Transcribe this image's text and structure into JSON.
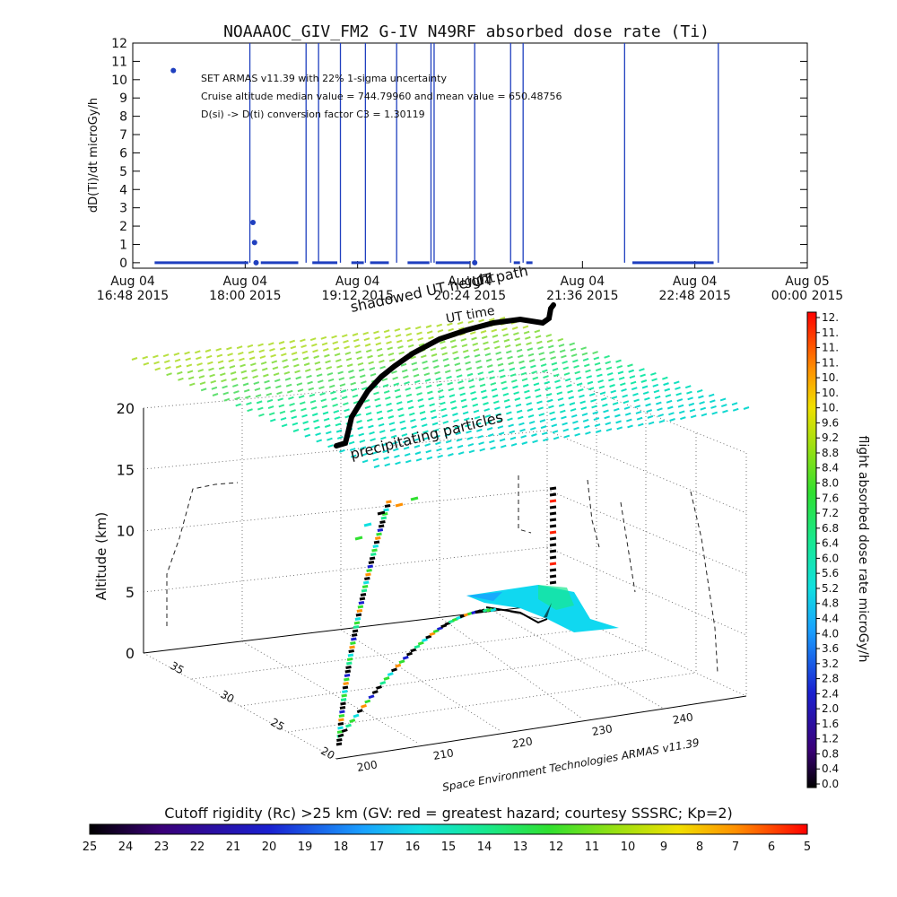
{
  "top_chart": {
    "title": "NOAAAOC_GIV_FM2  G-IV    N49RF   absorbed dose rate (Ti)",
    "ylabel": "dD(Ti)/dt microGy/h",
    "annotations": [
      "SET ARMAS v11.39 with 22% 1-sigma uncertainty",
      "Cruise altitude median value = 744.79960 and mean value = 650.48756",
      "D(si) -> D(ti) conversion factor C3 = 1.30119"
    ]
  },
  "chart_data": [
    {
      "type": "line",
      "title": "NOAAAOC_GIV_FM2  G-IV    N49RF   absorbed dose rate (Ti)",
      "xlabel": "",
      "ylabel": "dD(Ti)/dt microGy/h",
      "ylim": [
        -0.3,
        12
      ],
      "xlim_minutes": [
        0,
        432
      ],
      "x_tick_labels": [
        [
          "Aug 04",
          "16:48 2015"
        ],
        [
          "Aug 04",
          "18:00 2015"
        ],
        [
          "Aug 04",
          "19:12 2015"
        ],
        [
          "Aug 04",
          "20:24 2015"
        ],
        [
          "Aug 04",
          "21:36 2015"
        ],
        [
          "Aug 04",
          "22:48 2015"
        ],
        [
          "Aug 05",
          "00:00 2015"
        ]
      ],
      "y_ticks": [
        0,
        1,
        2,
        3,
        4,
        5,
        6,
        7,
        8,
        9,
        10,
        11,
        12
      ],
      "grid": false,
      "series_color": "#1f3fbf",
      "zero_segments_minutes": [
        [
          14,
          74
        ],
        [
          82,
          106
        ],
        [
          115,
          131
        ],
        [
          140,
          148
        ],
        [
          152,
          164
        ],
        [
          176,
          190
        ],
        [
          194,
          216
        ],
        [
          244,
          248
        ],
        [
          252,
          256
        ],
        [
          320,
          372
        ]
      ],
      "spikes_minutes": [
        75,
        111,
        119,
        133,
        149,
        169,
        191,
        193,
        219,
        242,
        250,
        315,
        375
      ],
      "points": [
        {
          "minute": 26,
          "value": 10.5
        },
        {
          "minute": 77,
          "value": 2.2
        },
        {
          "minute": 78,
          "value": 1.1
        },
        {
          "minute": 79,
          "value": 0
        },
        {
          "minute": 219,
          "value": 0
        }
      ]
    },
    {
      "type": "scatter3d",
      "zlabel": "Altitude (km)",
      "z_ticks": [
        0,
        5,
        10,
        15,
        20
      ],
      "y_ticks": [
        20,
        25,
        30,
        35
      ],
      "x_ticks": [
        200,
        210,
        220,
        230,
        240
      ],
      "scene_labels": [
        "precipitating particles",
        "shadowed UT height",
        "UT path",
        "UT time"
      ],
      "credit": "Space Environment Technologies ARMAS v11.39",
      "colorbar": {
        "title": "flight absorbed dose rate microGy/h",
        "ticks": [
          "12.",
          "11.",
          "11.",
          "11.",
          "10.",
          "10.",
          "10.",
          "9.6",
          "9.2",
          "8.8",
          "8.4",
          "8.0",
          "7.6",
          "7.2",
          "6.8",
          "6.4",
          "6.0",
          "5.6",
          "5.2",
          "4.8",
          "4.4",
          "4.0",
          "3.6",
          "3.2",
          "2.8",
          "2.4",
          "2.0",
          "1.6",
          "1.2",
          "0.8",
          "0.4",
          "0.0"
        ]
      },
      "rigidity_bar": {
        "title": "Cutoff rigidity (Rc) >25 km (GV: red = greatest hazard; courtesy SSSRC; Kp=2)",
        "ticks": [
          "25",
          "24",
          "23",
          "22",
          "21",
          "20",
          "19",
          "18",
          "17",
          "16",
          "15",
          "14",
          "13",
          "12",
          "11",
          "10",
          "9",
          "8",
          "7",
          "6",
          "5"
        ]
      }
    }
  ]
}
